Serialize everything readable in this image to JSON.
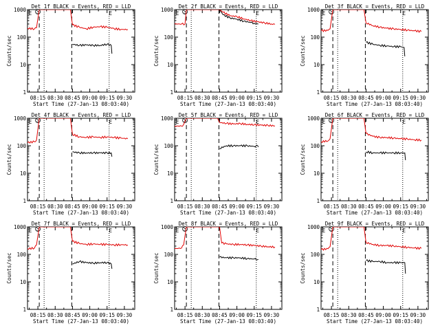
{
  "figure": {
    "x_tick_labels": [
      "08:15",
      "08:30",
      "08:45",
      "09:00",
      "09:15",
      "09:30"
    ],
    "x_tick_hours": [
      8.25,
      8.5,
      8.75,
      9.0,
      9.25,
      9.5
    ],
    "x_range_hours": [
      8.1,
      9.65
    ],
    "xlabel": "Start Time (27-Jan-13 08:03:40)",
    "ylabel": "Counts/sec",
    "y_tick_labels": [
      "1",
      "10",
      "100",
      "1000"
    ],
    "y_scale": "log",
    "ylim": [
      1,
      1000
    ],
    "colors": {
      "events": "#000000",
      "lld": "#e00000",
      "axes": "#000000",
      "background": "#ffffff"
    },
    "markers": {
      "E": "E",
      "S": "S"
    }
  },
  "chart_data": [
    {
      "type": "line",
      "title": "Det 1f BLACK = Events, RED = LLD",
      "series": [
        {
          "name": "Events",
          "values": [
            [
              8.75,
              55
            ],
            [
              8.85,
              50
            ],
            [
              8.95,
              52
            ],
            [
              9.05,
              50
            ],
            [
              9.15,
              50
            ],
            [
              9.25,
              55
            ],
            [
              9.31,
              50
            ],
            [
              9.32,
              25
            ]
          ]
        },
        {
          "name": "LLD",
          "values": [
            [
              8.1,
              210
            ],
            [
              8.2,
              200
            ],
            [
              8.23,
              220
            ],
            [
              8.27,
              1000
            ],
            [
              8.3,
              1000
            ],
            [
              8.72,
              1000
            ],
            [
              8.75,
              280
            ],
            [
              8.85,
              230
            ],
            [
              8.95,
              200
            ],
            [
              9.05,
              230
            ],
            [
              9.15,
              240
            ],
            [
              9.25,
              230
            ],
            [
              9.35,
              205
            ],
            [
              9.45,
              190
            ],
            [
              9.55,
              190
            ]
          ]
        }
      ],
      "vlines_dashed": [
        8.27,
        8.74
      ],
      "vlines_dotted": [
        8.34,
        9.28
      ],
      "marker_S": 8.25,
      "marker_E": [
        8.14,
        9.3
      ]
    },
    {
      "type": "line",
      "title": "Det 2f BLACK = Events, RED = LLD",
      "series": [
        {
          "name": "Events",
          "values": [
            [
              8.75,
              1000
            ],
            [
              8.8,
              650
            ],
            [
              8.9,
              500
            ],
            [
              9.0,
              450
            ],
            [
              9.1,
              380
            ],
            [
              9.2,
              340
            ],
            [
              9.25,
              320
            ],
            [
              9.3,
              300
            ],
            [
              9.31,
              300
            ]
          ]
        },
        {
          "name": "LLD",
          "values": [
            [
              8.1,
              300
            ],
            [
              8.2,
              300
            ],
            [
              8.25,
              300
            ],
            [
              8.27,
              1000
            ],
            [
              8.75,
              1000
            ],
            [
              8.8,
              800
            ],
            [
              8.9,
              600
            ],
            [
              9.0,
              560
            ],
            [
              9.1,
              460
            ],
            [
              9.2,
              400
            ],
            [
              9.3,
              360
            ],
            [
              9.4,
              330
            ],
            [
              9.5,
              300
            ],
            [
              9.55,
              290
            ]
          ]
        }
      ],
      "vlines_dashed": [
        8.27,
        8.74
      ],
      "vlines_dotted": [
        8.34,
        9.28
      ],
      "marker_S": 8.25,
      "marker_E": [
        8.14,
        9.3
      ]
    },
    {
      "type": "line",
      "title": "Det 3f BLACK = Events, RED = LLD",
      "series": [
        {
          "name": "Events",
          "values": [
            [
              8.75,
              65
            ],
            [
              8.85,
              55
            ],
            [
              8.95,
              50
            ],
            [
              9.05,
              48
            ],
            [
              9.15,
              45
            ],
            [
              9.25,
              45
            ],
            [
              9.3,
              42
            ],
            [
              9.31,
              20
            ]
          ]
        },
        {
          "name": "LLD",
          "values": [
            [
              8.1,
              170
            ],
            [
              8.2,
              175
            ],
            [
              8.23,
              200
            ],
            [
              8.27,
              1000
            ],
            [
              8.3,
              1000
            ],
            [
              8.72,
              1000
            ],
            [
              8.75,
              330
            ],
            [
              8.85,
              260
            ],
            [
              8.95,
              230
            ],
            [
              9.05,
              210
            ],
            [
              9.15,
              200
            ],
            [
              9.25,
              190
            ],
            [
              9.35,
              180
            ],
            [
              9.45,
              170
            ],
            [
              9.55,
              160
            ]
          ]
        }
      ],
      "vlines_dashed": [
        8.27,
        8.74
      ],
      "vlines_dotted": [
        8.34,
        9.28
      ],
      "marker_S": 8.25,
      "marker_E": [
        8.14,
        9.3
      ]
    },
    {
      "type": "line",
      "title": "Det 4f BLACK = Events, RED = LLD",
      "series": [
        {
          "name": "Events",
          "values": [
            [
              8.75,
              60
            ],
            [
              8.85,
              55
            ],
            [
              8.95,
              55
            ],
            [
              9.05,
              55
            ],
            [
              9.15,
              55
            ],
            [
              9.25,
              55
            ],
            [
              9.31,
              55
            ],
            [
              9.32,
              40
            ]
          ]
        },
        {
          "name": "LLD",
          "values": [
            [
              8.1,
              130
            ],
            [
              8.2,
              140
            ],
            [
              8.23,
              160
            ],
            [
              8.27,
              1000
            ],
            [
              8.3,
              1000
            ],
            [
              8.72,
              1000
            ],
            [
              8.75,
              260
            ],
            [
              8.85,
              210
            ],
            [
              8.95,
              200
            ],
            [
              9.05,
              210
            ],
            [
              9.15,
              200
            ],
            [
              9.25,
              210
            ],
            [
              9.35,
              200
            ],
            [
              9.45,
              190
            ],
            [
              9.55,
              180
            ]
          ]
        }
      ],
      "vlines_dashed": [
        8.27,
        8.74
      ],
      "vlines_dotted": [
        8.34,
        9.28
      ],
      "marker_S": 8.25,
      "marker_E": [
        8.14,
        9.3
      ]
    },
    {
      "type": "line",
      "title": "Det 5f BLACK = Events, RED = LLD",
      "series": [
        {
          "name": "Events",
          "values": [
            [
              8.75,
              80
            ],
            [
              8.85,
              100
            ],
            [
              8.95,
              100
            ],
            [
              9.05,
              100
            ],
            [
              9.15,
              100
            ],
            [
              9.25,
              95
            ],
            [
              9.3,
              100
            ],
            [
              9.31,
              90
            ]
          ]
        },
        {
          "name": "LLD",
          "values": [
            [
              8.1,
              520
            ],
            [
              8.2,
              520
            ],
            [
              8.23,
              600
            ],
            [
              8.27,
              1000
            ],
            [
              8.3,
              1000
            ],
            [
              8.72,
              1000
            ],
            [
              8.75,
              700
            ],
            [
              8.85,
              650
            ],
            [
              8.95,
              620
            ],
            [
              9.05,
              640
            ],
            [
              9.15,
              600
            ],
            [
              9.25,
              580
            ],
            [
              9.35,
              560
            ],
            [
              9.45,
              550
            ],
            [
              9.55,
              530
            ]
          ]
        }
      ],
      "vlines_dashed": [
        8.27,
        8.74
      ],
      "vlines_dotted": [
        8.34,
        9.28
      ],
      "marker_S": 8.25,
      "marker_E": [
        8.14,
        9.3
      ]
    },
    {
      "type": "line",
      "title": "Det 6f BLACK = Events, RED = LLD",
      "series": [
        {
          "name": "Events",
          "values": [
            [
              8.75,
              60
            ],
            [
              8.85,
              55
            ],
            [
              8.95,
              55
            ],
            [
              9.05,
              55
            ],
            [
              9.15,
              55
            ],
            [
              9.25,
              55
            ],
            [
              9.31,
              55
            ],
            [
              9.32,
              30
            ]
          ]
        },
        {
          "name": "LLD",
          "values": [
            [
              8.1,
              140
            ],
            [
              8.2,
              150
            ],
            [
              8.23,
              180
            ],
            [
              8.27,
              1000
            ],
            [
              8.3,
              1000
            ],
            [
              8.72,
              1000
            ],
            [
              8.75,
              280
            ],
            [
              8.85,
              220
            ],
            [
              8.95,
              200
            ],
            [
              9.05,
              200
            ],
            [
              9.15,
              190
            ],
            [
              9.25,
              180
            ],
            [
              9.35,
              175
            ],
            [
              9.45,
              165
            ],
            [
              9.55,
              160
            ]
          ]
        }
      ],
      "vlines_dashed": [
        8.27,
        8.74
      ],
      "vlines_dotted": [
        8.34,
        9.28
      ],
      "marker_S": 8.25,
      "marker_E": [
        8.14,
        9.3
      ]
    },
    {
      "type": "line",
      "title": "Det 7f BLACK = Events, RED = LLD",
      "series": [
        {
          "name": "Events",
          "values": [
            [
              8.75,
              45
            ],
            [
              8.85,
              55
            ],
            [
              8.95,
              50
            ],
            [
              9.05,
              48
            ],
            [
              9.15,
              50
            ],
            [
              9.25,
              50
            ],
            [
              9.31,
              45
            ],
            [
              9.32,
              30
            ]
          ]
        },
        {
          "name": "LLD",
          "values": [
            [
              8.1,
              160
            ],
            [
              8.2,
              170
            ],
            [
              8.23,
              220
            ],
            [
              8.27,
              1000
            ],
            [
              8.3,
              1000
            ],
            [
              8.72,
              1000
            ],
            [
              8.75,
              300
            ],
            [
              8.85,
              250
            ],
            [
              8.95,
              230
            ],
            [
              9.05,
              240
            ],
            [
              9.15,
              230
            ],
            [
              9.25,
              230
            ],
            [
              9.35,
              220
            ],
            [
              9.45,
              225
            ],
            [
              9.55,
              220
            ]
          ]
        }
      ],
      "vlines_dashed": [
        8.27,
        8.74
      ],
      "vlines_dotted": [
        8.34,
        9.28
      ],
      "marker_S": 8.25,
      "marker_E": [
        8.14,
        9.3
      ]
    },
    {
      "type": "line",
      "title": "Det 8f BLACK = Events, RED = LLD",
      "series": [
        {
          "name": "Events",
          "values": [
            [
              8.75,
              80
            ],
            [
              8.85,
              75
            ],
            [
              8.95,
              75
            ],
            [
              9.05,
              75
            ],
            [
              9.15,
              70
            ],
            [
              9.25,
              68
            ],
            [
              9.3,
              65
            ],
            [
              9.31,
              65
            ]
          ]
        },
        {
          "name": "LLD",
          "values": [
            [
              8.1,
              160
            ],
            [
              8.2,
              170
            ],
            [
              8.23,
              220
            ],
            [
              8.27,
              1000
            ],
            [
              8.75,
              1000
            ],
            [
              8.78,
              260
            ],
            [
              8.85,
              240
            ],
            [
              8.95,
              230
            ],
            [
              9.05,
              230
            ],
            [
              9.15,
              220
            ],
            [
              9.25,
              210
            ],
            [
              9.35,
              200
            ],
            [
              9.45,
              190
            ],
            [
              9.55,
              185
            ]
          ]
        }
      ],
      "vlines_dashed": [
        8.27,
        8.74
      ],
      "vlines_dotted": [
        8.34,
        9.28
      ],
      "marker_S": 8.25,
      "marker_E": [
        8.14,
        9.3
      ]
    },
    {
      "type": "line",
      "title": "Det 9f BLACK = Events, RED = LLD",
      "series": [
        {
          "name": "Events",
          "values": [
            [
              8.75,
              60
            ],
            [
              8.85,
              55
            ],
            [
              8.95,
              55
            ],
            [
              9.05,
              50
            ],
            [
              9.15,
              50
            ],
            [
              9.25,
              50
            ],
            [
              9.31,
              50
            ],
            [
              9.32,
              20
            ]
          ]
        },
        {
          "name": "LLD",
          "values": [
            [
              8.1,
              150
            ],
            [
              8.2,
              160
            ],
            [
              8.23,
              190
            ],
            [
              8.27,
              1000
            ],
            [
              8.3,
              1000
            ],
            [
              8.72,
              1000
            ],
            [
              8.75,
              270
            ],
            [
              8.85,
              230
            ],
            [
              8.95,
              210
            ],
            [
              9.05,
              210
            ],
            [
              9.15,
              200
            ],
            [
              9.25,
              190
            ],
            [
              9.35,
              180
            ],
            [
              9.45,
              170
            ],
            [
              9.55,
              165
            ]
          ]
        }
      ],
      "vlines_dashed": [
        8.27,
        8.74
      ],
      "vlines_dotted": [
        8.34,
        9.28
      ],
      "marker_S": 8.25,
      "marker_E": [
        8.14,
        9.3
      ]
    }
  ]
}
